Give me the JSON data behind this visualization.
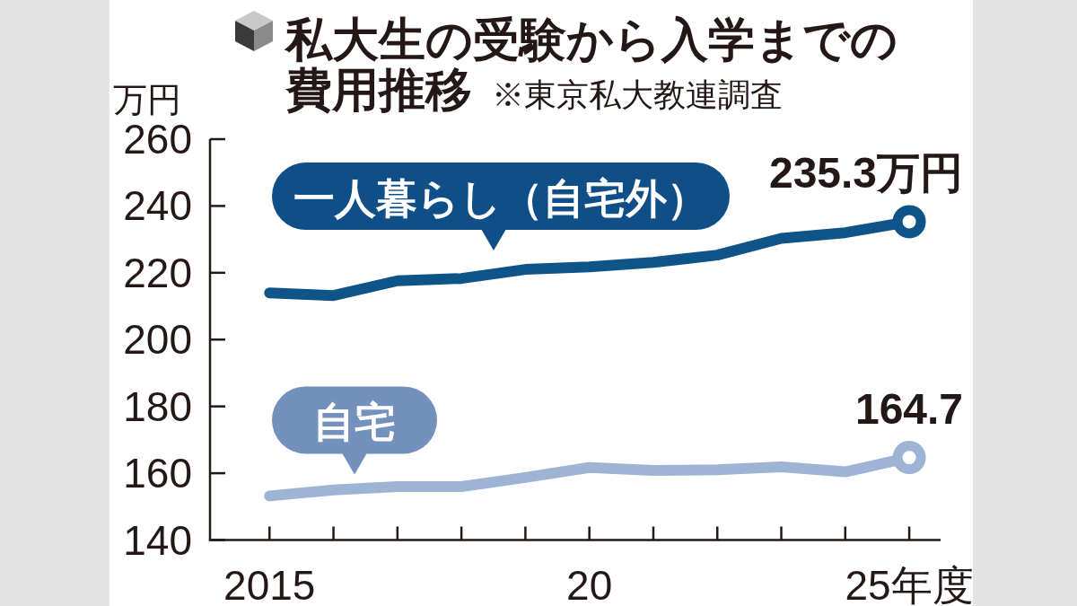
{
  "chart_data": {
    "type": "line",
    "title": "私大生の受験から入学までの費用推移",
    "annotations": [
      "※東京私大教連調査"
    ],
    "ylabel": "万円",
    "categories": [
      "2015",
      null,
      null,
      null,
      null,
      "20",
      null,
      null,
      null,
      null,
      "25年度"
    ],
    "ylim": [
      140,
      260
    ],
    "yticks": [
      140,
      160,
      180,
      200,
      220,
      240,
      260
    ],
    "line_style": "solid",
    "series": [
      {
        "name": "一人暮らし（自宅外）",
        "color": "#0f5488",
        "values": [
          214.0,
          213.2,
          217.6,
          218.3,
          221.0,
          221.8,
          223.1,
          225.3,
          230.3,
          232.0,
          235.3
        ],
        "value_labels": [
          null,
          null,
          null,
          null,
          null,
          null,
          null,
          null,
          null,
          null,
          "235.3万円"
        ]
      },
      {
        "name": "自宅",
        "color": "#9eb4d5",
        "values": [
          153.2,
          155.0,
          156.0,
          156.0,
          158.7,
          161.7,
          160.8,
          161.0,
          161.9,
          160.4,
          164.7
        ],
        "value_labels": [
          null,
          null,
          null,
          null,
          null,
          null,
          null,
          null,
          null,
          null,
          "164.7"
        ]
      }
    ]
  }
}
